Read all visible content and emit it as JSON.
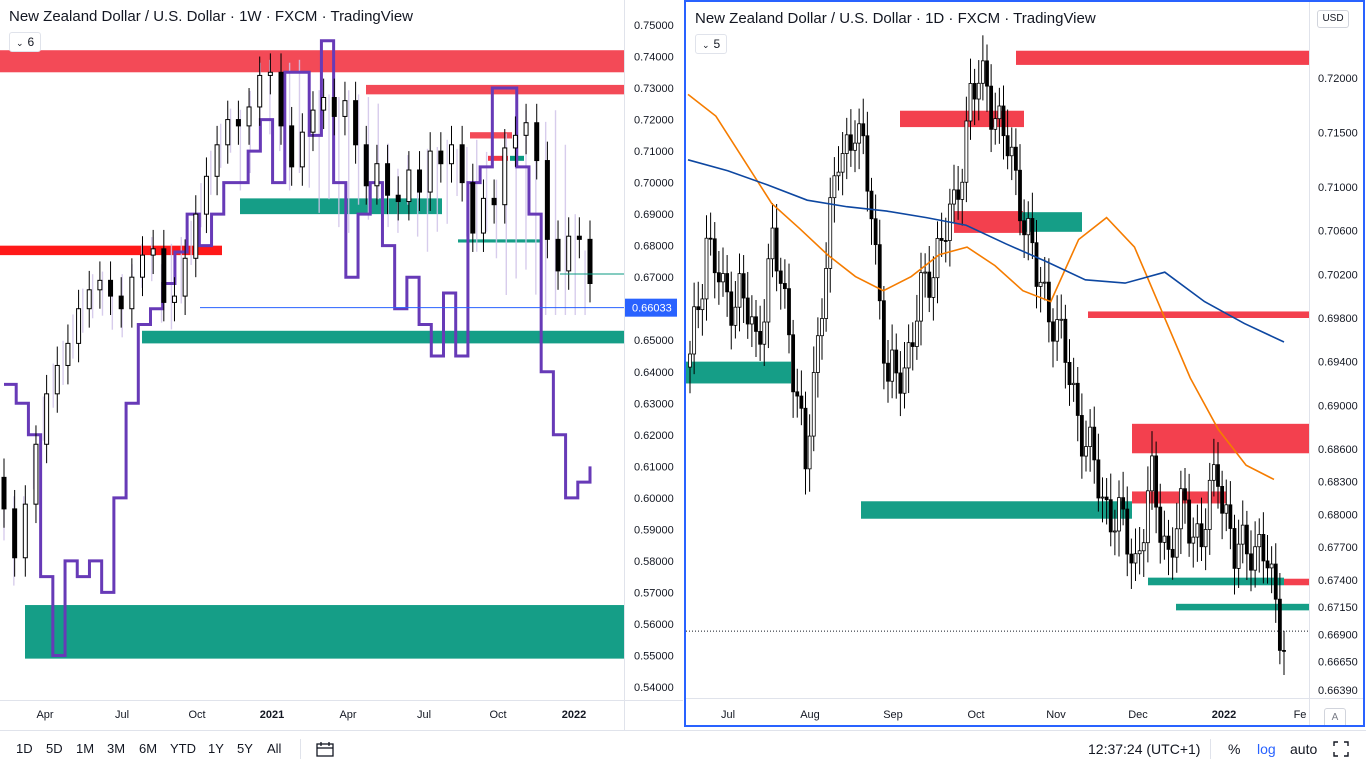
{
  "left": {
    "title": "New Zealand Dollar / U.S. Dollar · 1W · FXCM · TradingView",
    "indicator_count": "6",
    "price_labels": [
      "0.75000",
      "0.74000",
      "0.73000",
      "0.72000",
      "0.71000",
      "0.70000",
      "0.69000",
      "0.68000",
      "0.67000",
      "0.66000",
      "0.65000",
      "0.64000",
      "0.63000",
      "0.62000",
      "0.61000",
      "0.60000",
      "0.59000",
      "0.58000",
      "0.57000",
      "0.56000",
      "0.55000",
      "0.54000"
    ],
    "time_labels": [
      "Apr",
      "Jul",
      "Oct",
      "2021",
      "Apr",
      "Jul",
      "Oct",
      "2022"
    ],
    "current_price": "0.66033"
  },
  "right": {
    "title": "New Zealand Dollar / U.S. Dollar · 1D · FXCM · TradingView",
    "indicator_count": "5",
    "currency": "USD",
    "price_labels": [
      "0.72000",
      "0.71500",
      "0.71000",
      "0.70600",
      "0.70200",
      "0.69800",
      "0.69400",
      "0.69000",
      "0.68600",
      "0.68300",
      "0.68000",
      "0.67700",
      "0.67400",
      "0.67150",
      "0.66900",
      "0.66650",
      "0.66390"
    ],
    "time_labels": [
      "Jul",
      "Aug",
      "Sep",
      "Oct",
      "Nov",
      "Dec",
      "2022",
      "Fe"
    ],
    "auto_scale_button": "A"
  },
  "bottom": {
    "ranges": [
      "1D",
      "5D",
      "1M",
      "3M",
      "6M",
      "YTD",
      "1Y",
      "5Y",
      "All"
    ],
    "clock": "12:37:24 (UTC+1)",
    "percent": "%",
    "log": "log",
    "auto": "auto"
  },
  "colors": {
    "supply_zone": "#f23645",
    "demand_zone": "#089981",
    "ema_fast": "#f57c00",
    "ema_slow": "#0d47a1",
    "cloud_outline": "#673ab7",
    "cloud_fill": "#d1c4e9",
    "accent": "#2962ff"
  },
  "chart_data": [
    {
      "type": "candlestick",
      "title": "New Zealand Dollar / U.S. Dollar · 1W · FXCM · TradingView",
      "ylim": [
        0.535,
        0.755
      ],
      "x_ticks": [
        "Apr",
        "Jul",
        "Oct",
        "2021",
        "Apr",
        "Jul",
        "Oct",
        "2022"
      ],
      "last_price": 0.66033,
      "weekly_close": [
        0.5965,
        0.581,
        0.598,
        0.617,
        0.633,
        0.642,
        0.649,
        0.66,
        0.666,
        0.669,
        0.664,
        0.66,
        0.67,
        0.677,
        0.679,
        0.662,
        0.664,
        0.676,
        0.69,
        0.702,
        0.712,
        0.72,
        0.718,
        0.724,
        0.734,
        0.735,
        0.718,
        0.705,
        0.716,
        0.723,
        0.727,
        0.721,
        0.726,
        0.712,
        0.699,
        0.706,
        0.696,
        0.694,
        0.704,
        0.697,
        0.71,
        0.706,
        0.712,
        0.7,
        0.684,
        0.695,
        0.693,
        0.711,
        0.715,
        0.719,
        0.707,
        0.682,
        0.672,
        0.683,
        0.682,
        0.668
      ],
      "zones_supply": [
        [
          0.735,
          0.742
        ],
        [
          0.728,
          0.731
        ],
        [
          0.714,
          0.716
        ],
        [
          0.677,
          0.68
        ]
      ],
      "zones_demand": [
        [
          0.69,
          0.695
        ],
        [
          0.649,
          0.653
        ],
        [
          0.549,
          0.566
        ],
        [
          0.681,
          0.682
        ]
      ]
    },
    {
      "type": "candlestick",
      "title": "New Zealand Dollar / U.S. Dollar · 1D · FXCM · TradingView",
      "ylim": [
        0.663,
        0.723
      ],
      "x_ticks": [
        "Jul",
        "Aug",
        "Sep",
        "Oct",
        "Nov",
        "Dec",
        "2022",
        "Fe"
      ],
      "series": [
        {
          "name": "ema_fast",
          "values": [
            0.7185,
            0.7165,
            0.7125,
            0.7085,
            0.7062,
            0.7038,
            0.7018,
            0.7005,
            0.7018,
            0.7038,
            0.7045,
            0.7028,
            0.7005,
            0.6995,
            0.7052,
            0.7072,
            0.7045,
            0.6985,
            0.6925,
            0.6878,
            0.6845,
            0.6832
          ]
        },
        {
          "name": "ema_slow",
          "values": [
            0.7125,
            0.7115,
            0.7102,
            0.7088,
            0.7082,
            0.7078,
            0.7072,
            0.7065,
            0.7048,
            0.7032,
            0.7015,
            0.7012,
            0.7022,
            0.6995,
            0.6975,
            0.6958
          ]
        }
      ],
      "zones_supply": [
        [
          0.7212,
          0.7225
        ],
        [
          0.7155,
          0.717
        ],
        [
          0.7058,
          0.7078
        ],
        [
          0.698,
          0.6986
        ],
        [
          0.6856,
          0.6883
        ],
        [
          0.681,
          0.6821
        ],
        [
          0.6735,
          0.6741
        ]
      ],
      "zones_demand": [
        [
          0.6796,
          0.6812
        ],
        [
          0.6735,
          0.6742
        ],
        [
          0.6712,
          0.6718
        ],
        [
          0.7059,
          0.7077
        ],
        [
          0.692,
          0.694
        ]
      ]
    }
  ]
}
